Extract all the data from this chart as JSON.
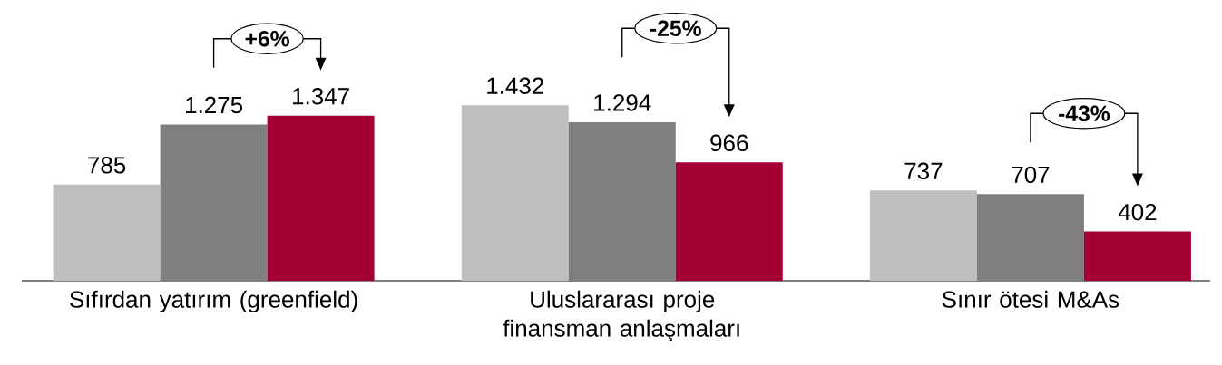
{
  "chart_data": {
    "type": "bar",
    "categories": [
      "Sıfırdan yatırım (greenfield)",
      "Uluslararası proje finansman anlaşmaları",
      "Sınır ötesi M&As"
    ],
    "series": [
      {
        "color": "#bfbfbf",
        "values": [
          785,
          1432,
          737
        ],
        "value_labels": [
          "785",
          "1.432",
          "737"
        ]
      },
      {
        "color": "#7f7f7f",
        "values": [
          1275,
          1294,
          707
        ],
        "value_labels": [
          "1.275",
          "1.294",
          "707"
        ]
      },
      {
        "color": "#a50034",
        "values": [
          1347,
          966,
          402
        ],
        "value_labels": [
          "1.347",
          "966",
          "402"
        ]
      }
    ],
    "annotations": [
      "+6%",
      "-25%",
      "-43%"
    ]
  }
}
